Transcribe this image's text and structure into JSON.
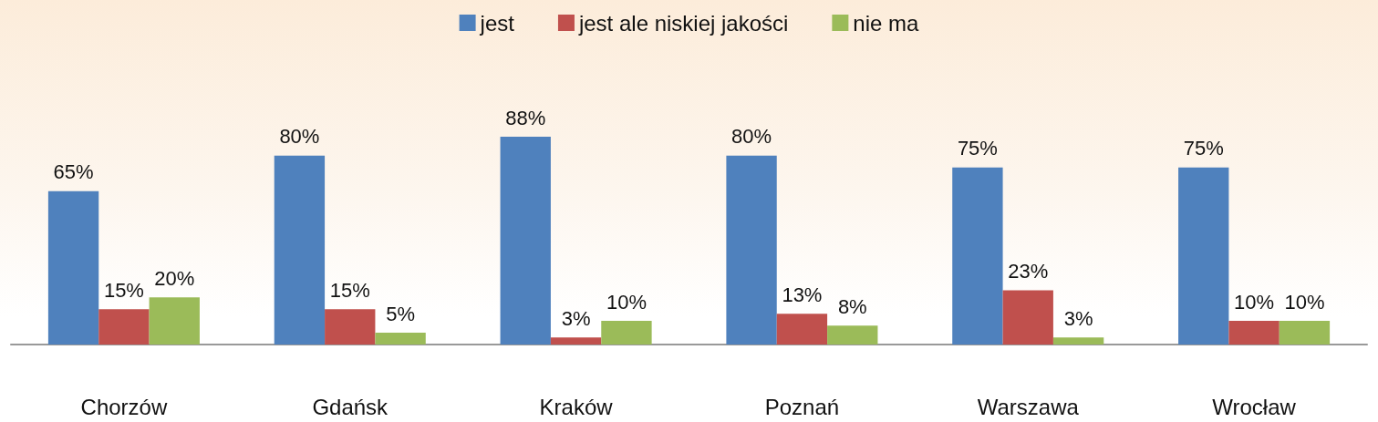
{
  "chart_data": {
    "type": "bar",
    "categories": [
      "Chorzów",
      "Gdańsk",
      "Kraków",
      "Poznań",
      "Warszawa",
      "Wrocław"
    ],
    "series": [
      {
        "name": "jest",
        "color": "#4f81bd",
        "values": [
          65,
          80,
          88,
          80,
          75,
          75
        ],
        "value_labels": [
          "65%",
          "80%",
          "88%",
          "80%",
          "75%",
          "75%"
        ]
      },
      {
        "name": "jest ale niskiej jakości",
        "color": "#c0504d",
        "values": [
          15,
          15,
          3,
          13,
          23,
          10
        ],
        "value_labels": [
          "15%",
          "15%",
          "3%",
          "13%",
          "23%",
          "10%"
        ]
      },
      {
        "name": "nie ma",
        "color": "#9bbb59",
        "values": [
          20,
          5,
          10,
          8,
          3,
          10
        ],
        "value_labels": [
          "20%",
          "5%",
          "10%",
          "8%",
          "3%",
          "10%"
        ]
      }
    ],
    "legend": "top",
    "grid": false
  }
}
